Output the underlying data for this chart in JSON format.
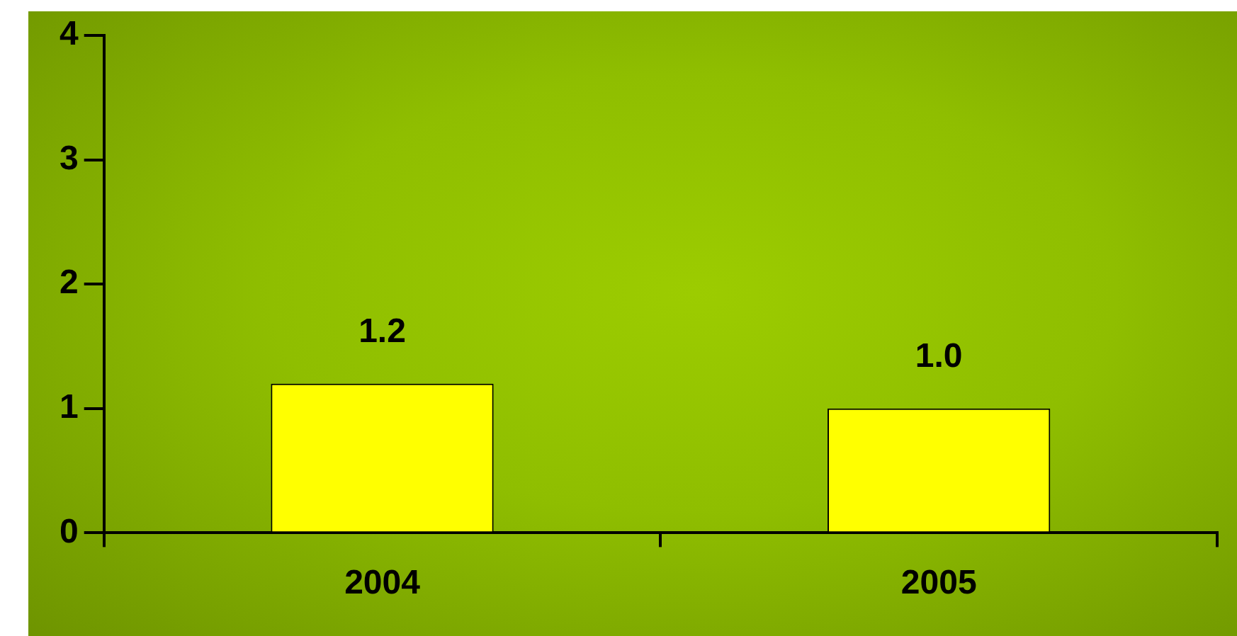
{
  "chart_data": {
    "type": "bar",
    "categories": [
      "2004",
      "2005"
    ],
    "values": [
      1.2,
      1.0
    ],
    "color": "#ffff00",
    "value_labels": [
      "1.2",
      "1.0"
    ],
    "ylim": [
      0,
      4
    ],
    "yticks": [
      0,
      1,
      2,
      3,
      4
    ],
    "grid": false,
    "legend": false
  }
}
